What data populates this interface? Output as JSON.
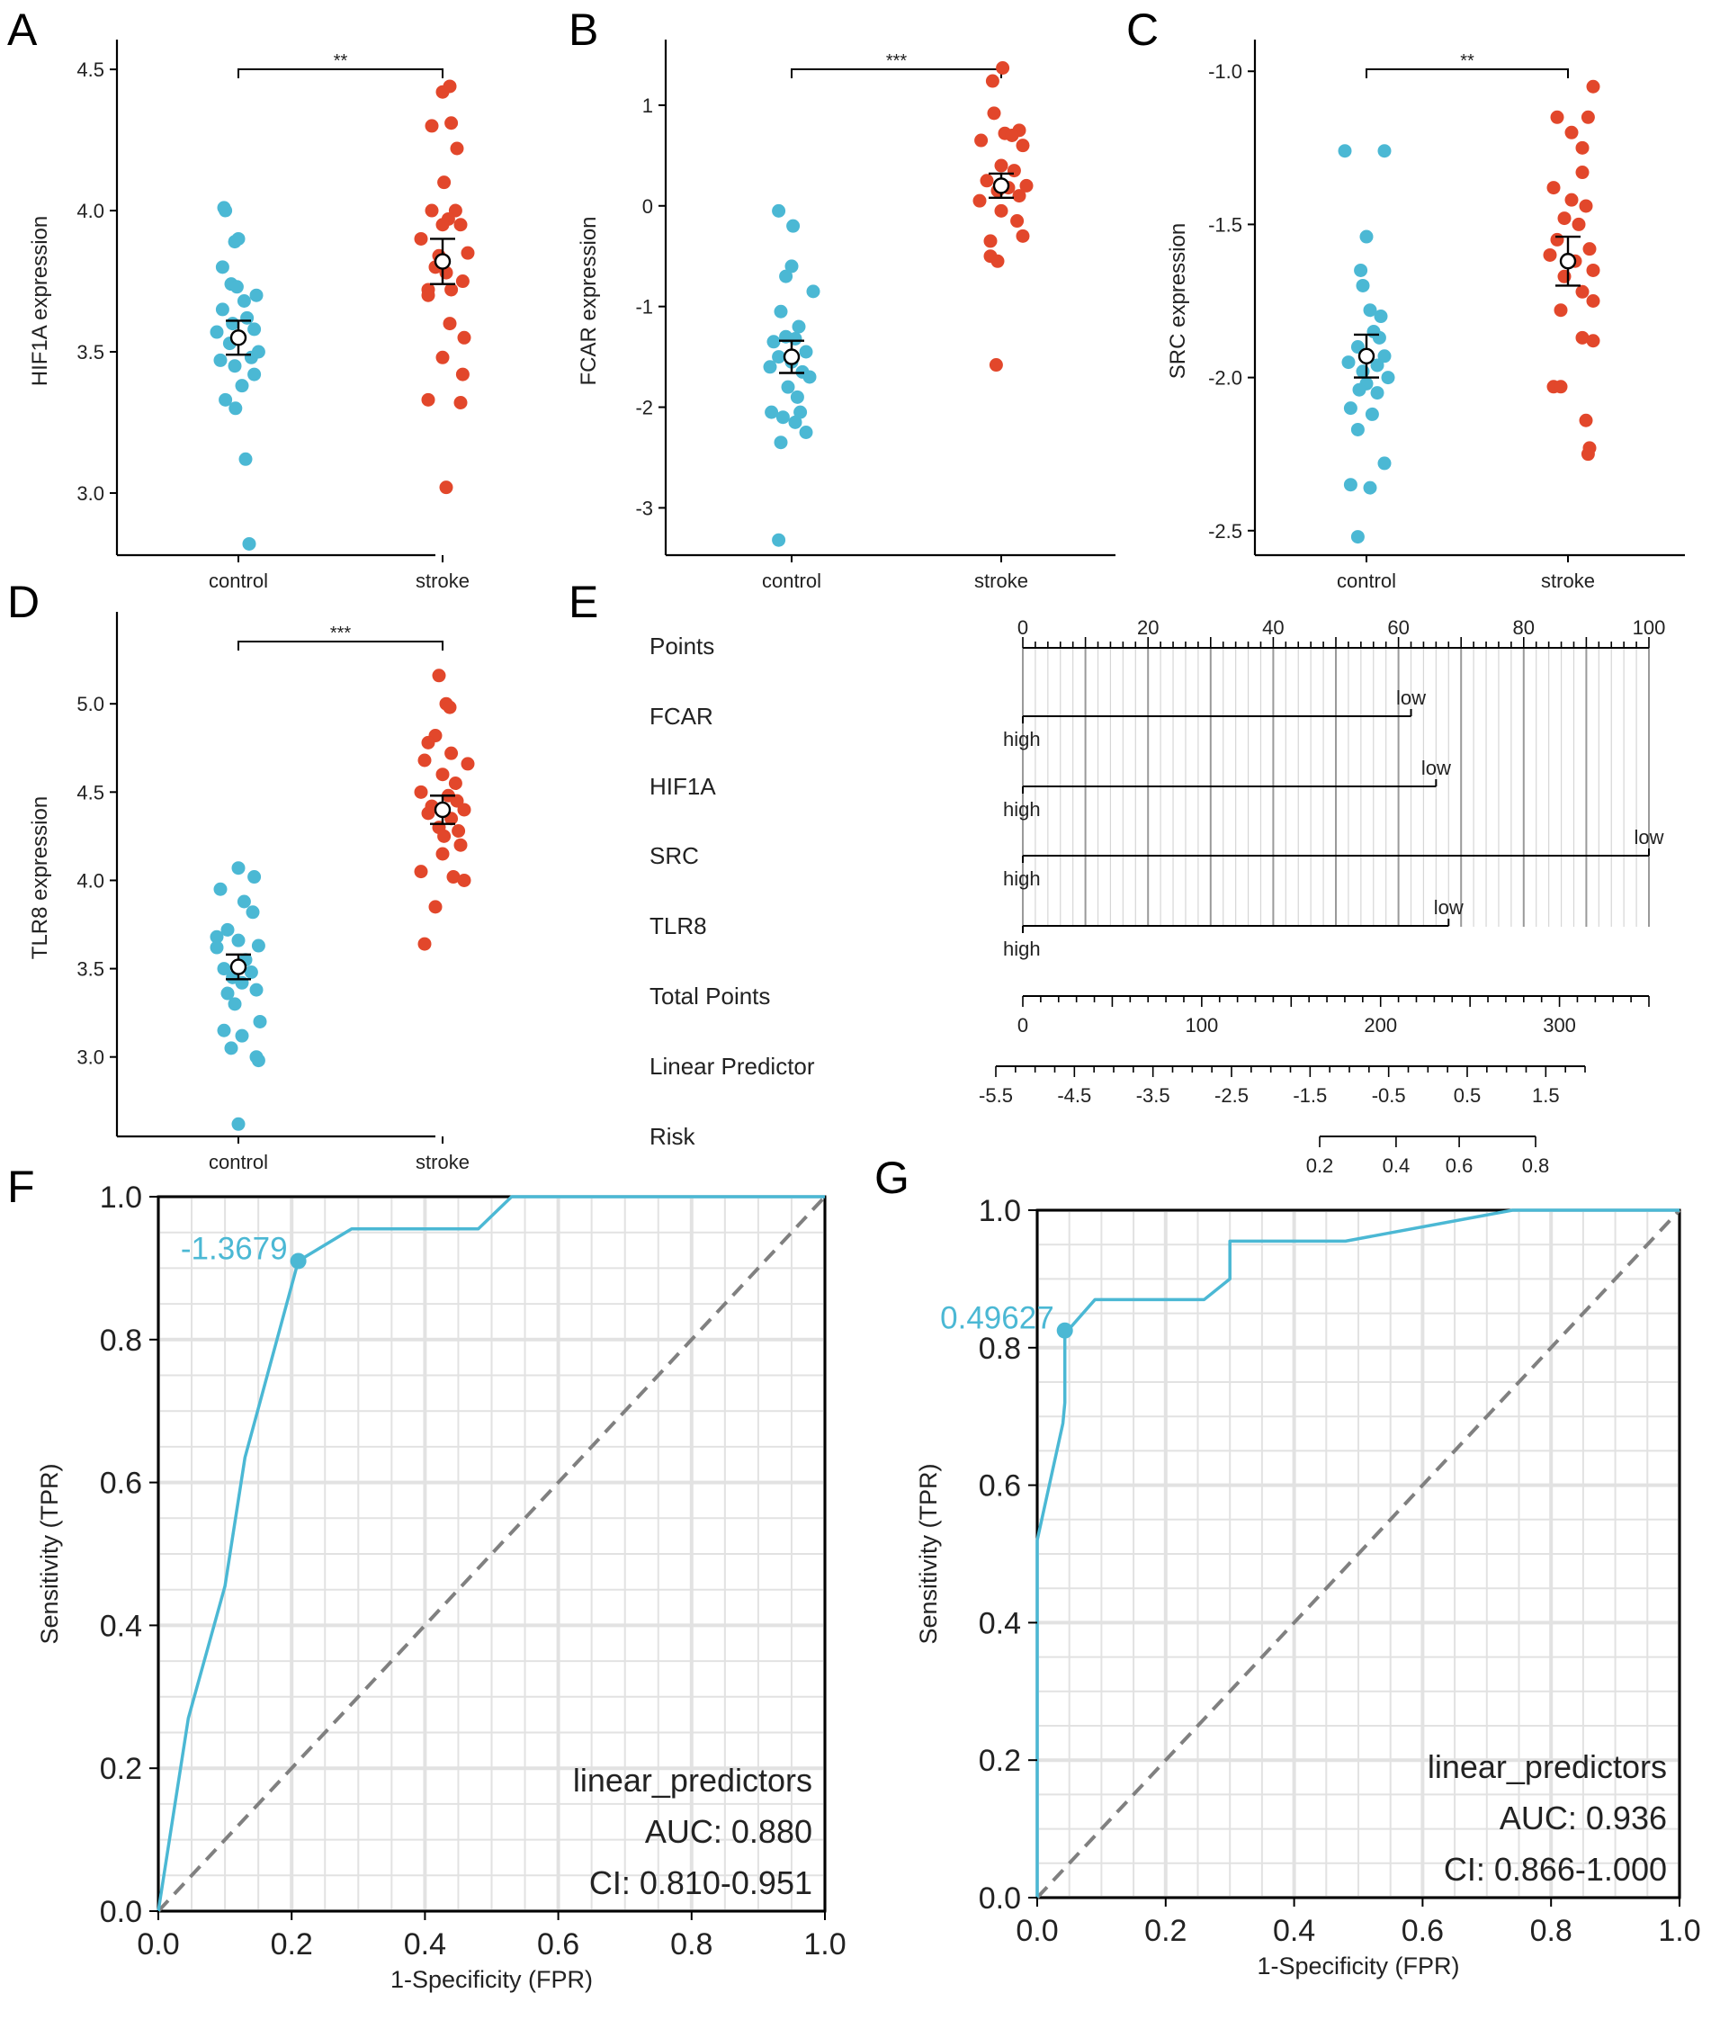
{
  "colors": {
    "control": "#4bb8d4",
    "stroke": "#e2472b",
    "roc": "#4bb8d4",
    "diag": "#808080"
  },
  "chart_data": [
    {
      "panel": "A",
      "type": "scatter",
      "ylabel": "HIF1A expression",
      "categories": [
        "control",
        "stroke"
      ],
      "significance": "**",
      "ylim": [
        2.78,
        4.58
      ],
      "yticks": [
        "3.0",
        "3.5",
        "4.0",
        "4.5"
      ],
      "groups": [
        {
          "name": "control",
          "mean": 3.55,
          "ci": [
            3.49,
            3.61
          ],
          "values": [
            4.01,
            4.0,
            3.89,
            3.9,
            3.8,
            3.74,
            3.73,
            3.7,
            3.68,
            3.65,
            3.62,
            3.6,
            3.58,
            3.57,
            3.55,
            3.53,
            3.5,
            3.48,
            3.47,
            3.45,
            3.42,
            3.38,
            3.33,
            3.3,
            3.12,
            2.82
          ],
          "jitter": [
            -0.2,
            -0.18,
            -0.05,
            0.0,
            -0.22,
            -0.1,
            -0.02,
            0.25,
            0.08,
            -0.22,
            0.12,
            -0.08,
            0.22,
            -0.3,
            0.0,
            -0.12,
            0.28,
            0.18,
            -0.25,
            -0.05,
            0.22,
            0.05,
            -0.18,
            -0.04,
            0.1,
            0.15
          ]
        },
        {
          "name": "stroke",
          "mean": 3.82,
          "ci": [
            3.74,
            3.9
          ],
          "values": [
            4.44,
            4.42,
            4.3,
            4.31,
            4.22,
            4.1,
            4.0,
            4.0,
            3.97,
            3.95,
            3.95,
            3.9,
            3.85,
            3.84,
            3.8,
            3.78,
            3.75,
            3.72,
            3.72,
            3.7,
            3.6,
            3.55,
            3.48,
            3.42,
            3.33,
            3.32,
            3.02
          ],
          "jitter": [
            0.1,
            0.0,
            -0.15,
            0.12,
            0.2,
            0.02,
            -0.15,
            0.18,
            0.08,
            0.0,
            0.25,
            -0.3,
            0.35,
            -0.05,
            -0.1,
            0.05,
            0.28,
            -0.2,
            0.12,
            -0.2,
            0.1,
            0.3,
            0.0,
            0.28,
            -0.2,
            0.25,
            0.05
          ]
        }
      ]
    },
    {
      "panel": "B",
      "type": "scatter",
      "ylabel": "FCAR expression",
      "categories": [
        "control",
        "stroke"
      ],
      "significance": "***",
      "ylim": [
        -3.47,
        1.58
      ],
      "yticks": [
        "-3",
        "-2",
        "-1",
        "0",
        "1"
      ],
      "groups": [
        {
          "name": "control",
          "mean": -1.5,
          "ci": [
            -1.66,
            -1.34
          ],
          "values": [
            -0.05,
            -0.2,
            -0.6,
            -0.7,
            -0.85,
            -1.05,
            -1.2,
            -1.3,
            -1.32,
            -1.35,
            -1.45,
            -1.5,
            -1.55,
            -1.6,
            -1.65,
            -1.7,
            -1.8,
            -1.9,
            -2.05,
            -2.05,
            -2.1,
            -2.15,
            -2.25,
            -2.35,
            -3.32
          ],
          "jitter": [
            -0.18,
            0.02,
            0.0,
            -0.08,
            0.3,
            -0.15,
            0.1,
            -0.08,
            0.05,
            -0.25,
            0.2,
            -0.18,
            0.0,
            -0.3,
            0.15,
            0.25,
            -0.05,
            0.08,
            -0.28,
            0.12,
            -0.12,
            0.05,
            0.2,
            -0.15,
            -0.18
          ]
        },
        {
          "name": "stroke",
          "mean": 0.2,
          "ci": [
            0.08,
            0.32
          ],
          "values": [
            1.37,
            1.24,
            0.92,
            0.75,
            0.72,
            0.7,
            0.65,
            0.6,
            0.4,
            0.35,
            0.25,
            0.2,
            0.18,
            0.15,
            0.1,
            0.05,
            -0.05,
            -0.15,
            -0.3,
            -0.35,
            -0.5,
            -0.55,
            -1.58
          ],
          "jitter": [
            0.02,
            -0.12,
            -0.1,
            0.25,
            0.05,
            0.15,
            -0.28,
            0.3,
            0.0,
            0.18,
            -0.2,
            0.35,
            0.1,
            -0.05,
            0.25,
            -0.3,
            0.0,
            0.22,
            0.3,
            -0.15,
            -0.15,
            -0.05,
            -0.07
          ]
        }
      ]
    },
    {
      "panel": "C",
      "type": "scatter",
      "ylabel": "SRC expression",
      "categories": [
        "control",
        "stroke"
      ],
      "significance": "**",
      "ylim": [
        -2.58,
        -0.92
      ],
      "yticks": [
        "-2.5",
        "-2.0",
        "-1.5",
        "-1.0"
      ],
      "groups": [
        {
          "name": "control",
          "mean": -1.93,
          "ci": [
            -2.0,
            -1.86
          ],
          "values": [
            -1.26,
            -1.26,
            -1.54,
            -1.65,
            -1.7,
            -1.78,
            -1.8,
            -1.85,
            -1.87,
            -1.9,
            -1.93,
            -1.95,
            -1.96,
            -1.98,
            -2.0,
            -2.02,
            -2.04,
            -2.05,
            -2.1,
            -2.12,
            -2.17,
            -2.28,
            -2.35,
            -2.36,
            -2.52
          ],
          "jitter": [
            -0.3,
            0.25,
            0.0,
            -0.08,
            -0.05,
            0.05,
            0.2,
            0.1,
            0.18,
            -0.12,
            0.25,
            -0.25,
            0.15,
            -0.05,
            0.3,
            0.0,
            -0.1,
            0.15,
            -0.22,
            0.08,
            -0.12,
            0.25,
            -0.22,
            0.05,
            -0.12
          ]
        },
        {
          "name": "stroke",
          "mean": -1.62,
          "ci": [
            -1.7,
            -1.54
          ],
          "values": [
            -1.05,
            -1.15,
            -1.15,
            -1.2,
            -1.25,
            -1.33,
            -1.38,
            -1.42,
            -1.44,
            -1.48,
            -1.5,
            -1.55,
            -1.58,
            -1.6,
            -1.62,
            -1.65,
            -1.67,
            -1.72,
            -1.75,
            -1.78,
            -1.87,
            -1.88,
            -2.03,
            -2.03,
            -2.14,
            -2.23,
            -2.25
          ],
          "jitter": [
            0.35,
            0.28,
            -0.15,
            0.05,
            0.2,
            0.2,
            -0.2,
            0.05,
            0.25,
            -0.05,
            0.15,
            -0.15,
            0.3,
            -0.25,
            0.1,
            0.35,
            -0.05,
            0.2,
            0.35,
            -0.1,
            0.2,
            0.35,
            -0.2,
            -0.1,
            0.25,
            0.3,
            0.28
          ]
        }
      ]
    },
    {
      "panel": "D",
      "type": "scatter",
      "ylabel": "TLR8 expression",
      "categories": [
        "control",
        "stroke"
      ],
      "significance": "***",
      "ylim": [
        2.55,
        5.48
      ],
      "yticks": [
        "3.0",
        "3.5",
        "4.0",
        "4.5",
        "5.0"
      ],
      "groups": [
        {
          "name": "control",
          "mean": 3.51,
          "ci": [
            3.44,
            3.58
          ],
          "values": [
            4.07,
            4.02,
            3.95,
            3.88,
            3.82,
            3.72,
            3.68,
            3.66,
            3.63,
            3.62,
            3.55,
            3.5,
            3.48,
            3.45,
            3.42,
            3.38,
            3.36,
            3.3,
            3.2,
            3.15,
            3.12,
            3.05,
            3.0,
            2.98,
            2.62
          ],
          "jitter": [
            0.0,
            0.22,
            -0.25,
            0.08,
            0.2,
            -0.15,
            -0.3,
            0.0,
            0.28,
            -0.3,
            0.1,
            -0.2,
            0.18,
            -0.08,
            0.05,
            0.25,
            -0.15,
            -0.05,
            0.3,
            -0.2,
            0.05,
            -0.1,
            0.25,
            0.28,
            0.0
          ]
        },
        {
          "name": "stroke",
          "mean": 4.4,
          "ci": [
            4.32,
            4.48
          ],
          "values": [
            5.16,
            5.0,
            4.98,
            4.82,
            4.78,
            4.72,
            4.68,
            4.66,
            4.6,
            4.55,
            4.5,
            4.48,
            4.45,
            4.42,
            4.4,
            4.38,
            4.35,
            4.3,
            4.28,
            4.25,
            4.2,
            4.15,
            4.05,
            4.02,
            4.0,
            3.85,
            3.64
          ],
          "jitter": [
            -0.05,
            0.05,
            0.1,
            -0.1,
            -0.2,
            0.12,
            -0.25,
            0.35,
            0.0,
            0.18,
            -0.3,
            0.08,
            0.2,
            -0.15,
            0.3,
            -0.2,
            0.12,
            -0.05,
            0.22,
            0.02,
            0.25,
            0.0,
            -0.3,
            0.15,
            0.3,
            -0.1,
            -0.25
          ]
        }
      ]
    },
    {
      "panel": "E",
      "type": "nomogram",
      "rows": [
        "Points",
        "FCAR",
        "HIF1A",
        "SRC",
        "TLR8",
        "Total Points",
        "Linear Predictor",
        "Risk"
      ],
      "points_axis": {
        "range": [
          0,
          100
        ],
        "labels": [
          "0",
          "20",
          "40",
          "60",
          "80",
          "100"
        ]
      },
      "variables": [
        {
          "name": "FCAR",
          "high": "high",
          "low": "low",
          "max_points": 62
        },
        {
          "name": "HIF1A",
          "high": "high",
          "low": "low",
          "max_points": 66
        },
        {
          "name": "SRC",
          "high": "high",
          "low": "low",
          "max_points": 100
        },
        {
          "name": "TLR8",
          "high": "high",
          "low": "low",
          "max_points": 68
        }
      ],
      "total_points": {
        "range": [
          0,
          350
        ],
        "labels": [
          "0",
          "100",
          "200",
          "300"
        ]
      },
      "linear_predictor": {
        "range": [
          -5.5,
          2.0
        ],
        "labels": [
          "-5.5",
          "-4.5",
          "-3.5",
          "-2.5",
          "-1.5",
          "-0.5",
          "0.5",
          "1.5"
        ]
      },
      "risk": {
        "range": [
          0.2,
          0.8
        ],
        "labels": [
          "0.2",
          "0.4",
          "0.6",
          "0.8"
        ]
      }
    },
    {
      "panel": "F",
      "type": "line",
      "xlabel": "1-Specificity (FPR)",
      "ylabel": "Sensitivity (TPR)",
      "xlim": [
        0,
        1
      ],
      "ylim": [
        0,
        1
      ],
      "ticks": [
        "0.0",
        "0.2",
        "0.4",
        "0.6",
        "0.8",
        "1.0"
      ],
      "fpr": [
        0.0,
        0.045,
        0.1,
        0.13,
        0.21,
        0.29,
        0.48,
        0.53,
        1.0
      ],
      "tpr": [
        0.0,
        0.27,
        0.455,
        0.635,
        0.91,
        0.955,
        0.955,
        1.0,
        1.0
      ],
      "cutoff": {
        "label": "-1.3679",
        "fpr": 0.21,
        "tpr": 0.91
      },
      "legend": {
        "name": "linear_predictors",
        "auc": "AUC: 0.880",
        "ci": "CI: 0.810-0.951"
      }
    },
    {
      "panel": "G",
      "type": "line",
      "xlabel": "1-Specificity (FPR)",
      "ylabel": "Sensitivity (TPR)",
      "xlim": [
        0,
        1
      ],
      "ylim": [
        0,
        1
      ],
      "ticks": [
        "0.0",
        "0.2",
        "0.4",
        "0.6",
        "0.8",
        "1.0"
      ],
      "fpr": [
        0.0,
        0.0,
        0.0,
        0.04,
        0.043,
        0.043,
        0.09,
        0.26,
        0.3,
        0.3,
        0.48,
        0.74,
        1.0
      ],
      "tpr": [
        0.0,
        0.0,
        0.52,
        0.69,
        0.72,
        0.82,
        0.87,
        0.87,
        0.9,
        0.955,
        0.955,
        1.0,
        1.0
      ],
      "cutoff": {
        "label": "0.49627",
        "fpr": 0.043,
        "tpr": 0.825
      },
      "legend": {
        "name": "linear_predictors",
        "auc": "AUC: 0.936",
        "ci": "CI: 0.866-1.000"
      }
    }
  ]
}
